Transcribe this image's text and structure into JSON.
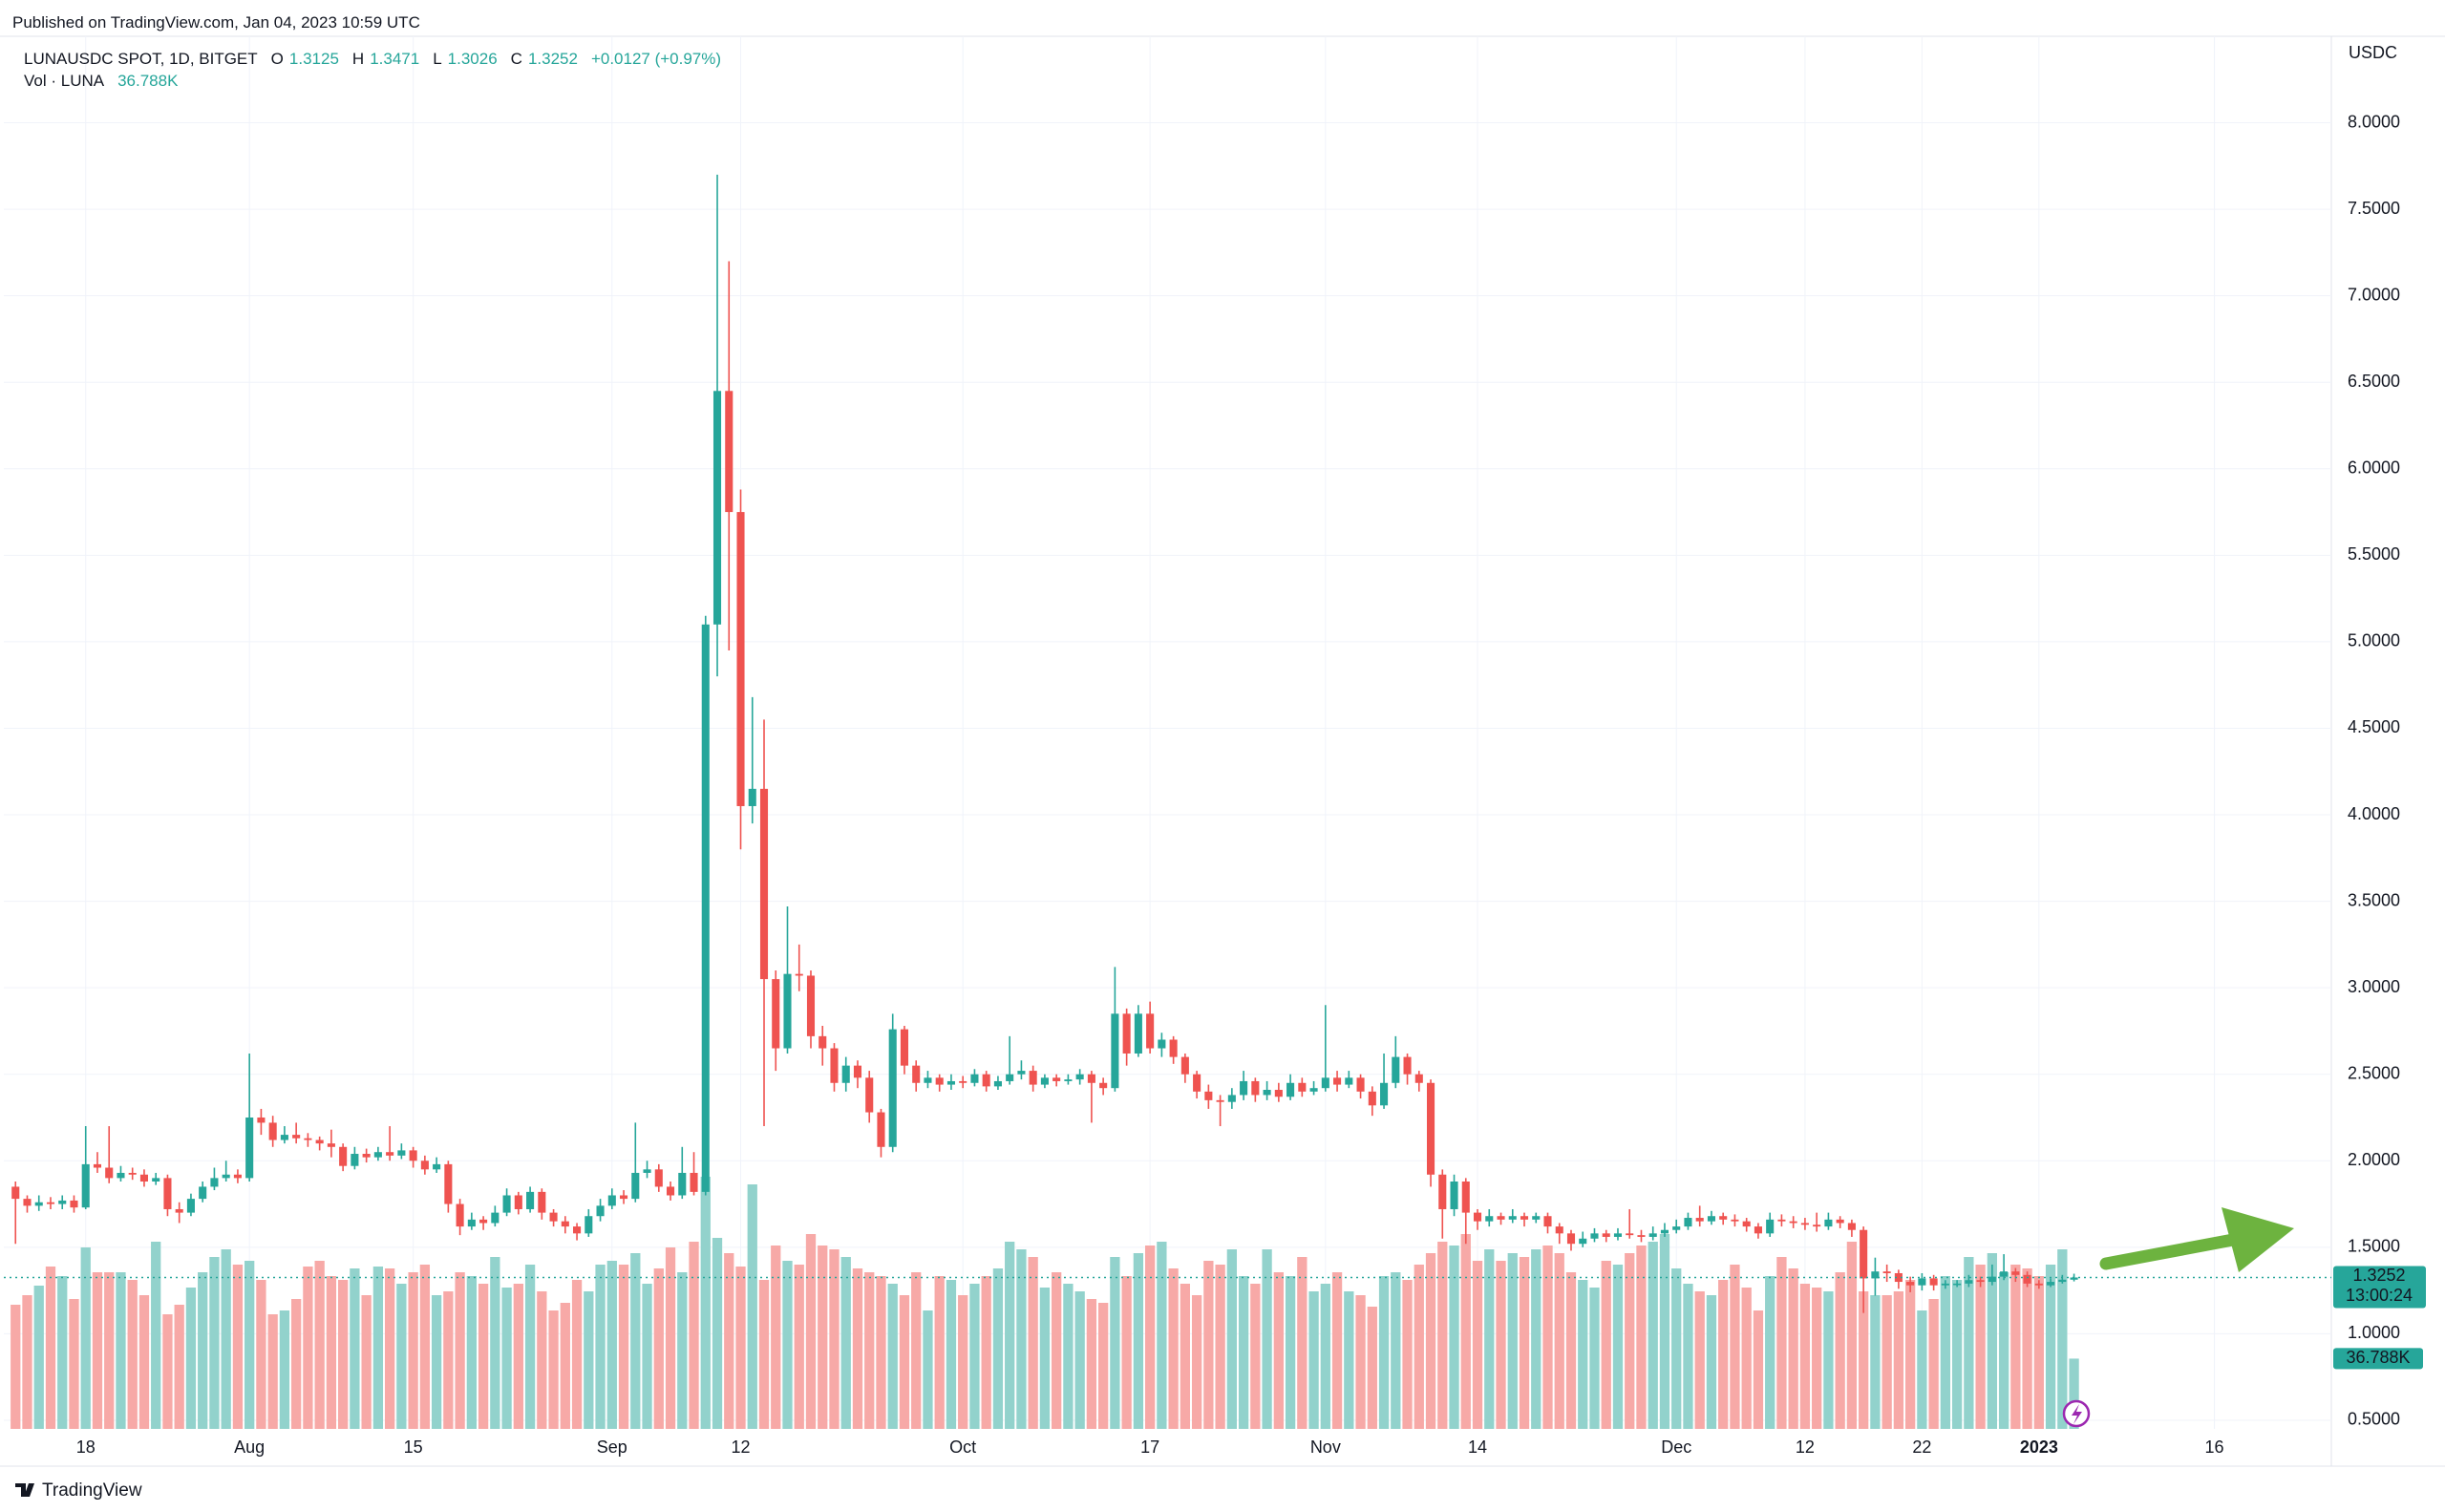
{
  "page": {
    "published": "Published on TradingView.com, Jan 04, 2023 10:59 UTC",
    "footer": "TradingView"
  },
  "chart_data": {
    "type": "candlestick",
    "symbol": "LUNAUSDC SPOT, 1D, BITGET",
    "o": "O",
    "h": "H",
    "l": "L",
    "c": "C",
    "change": "+0.0127 (+0.97%)",
    "vol_name": "Vol · LUNA",
    "vol_label": "36.788K",
    "currency": "USDC",
    "countdown": "13:00:24",
    "up_color": "#26a69a",
    "down_color": "#ef5350",
    "volume_up_color": "#92d2cc",
    "volume_down_color": "#f7a9a7",
    "grid": true,
    "xlim": [
      "2022-07-11",
      "2023-01-26"
    ],
    "xticks": [
      {
        "value": "2022-07-18",
        "label": "18"
      },
      {
        "value": "2022-08-01",
        "label": "Aug"
      },
      {
        "value": "2022-08-15",
        "label": "15"
      },
      {
        "value": "2022-09-01",
        "label": "Sep"
      },
      {
        "value": "2022-09-12",
        "label": "12"
      },
      {
        "value": "2022-10-01",
        "label": "Oct"
      },
      {
        "value": "2022-10-17",
        "label": "17"
      },
      {
        "value": "2022-11-01",
        "label": "Nov"
      },
      {
        "value": "2022-11-14",
        "label": "14"
      },
      {
        "value": "2022-12-01",
        "label": "Dec"
      },
      {
        "value": "2022-12-12",
        "label": "12"
      },
      {
        "value": "2022-12-22",
        "label": "22"
      },
      {
        "value": "2023-01-01",
        "label": "2023"
      },
      {
        "value": "2023-01-16",
        "label": "16"
      }
    ],
    "ylim": [
      0.45,
      8.5
    ],
    "yticks": [
      {
        "value": 0.5,
        "label": "0.5000"
      },
      {
        "value": 1.0,
        "label": "1.0000"
      },
      {
        "value": 1.5,
        "label": "1.5000"
      },
      {
        "value": 2.0,
        "label": "2.0000"
      },
      {
        "value": 2.5,
        "label": "2.5000"
      },
      {
        "value": 3.0,
        "label": "3.0000"
      },
      {
        "value": 3.5,
        "label": "3.5000"
      },
      {
        "value": 4.0,
        "label": "4.0000"
      },
      {
        "value": 4.5,
        "label": "4.5000"
      },
      {
        "value": 5.0,
        "label": "5.0000"
      },
      {
        "value": 5.5,
        "label": "5.5000"
      },
      {
        "value": 6.0,
        "label": "6.0000"
      },
      {
        "value": 6.5,
        "label": "6.5000"
      },
      {
        "value": 7.0,
        "label": "7.0000"
      },
      {
        "value": 7.5,
        "label": "7.5000"
      },
      {
        "value": 8.0,
        "label": "8.0000"
      }
    ],
    "x": [
      "2022-07-12",
      "2022-07-13",
      "2022-07-14",
      "2022-07-15",
      "2022-07-16",
      "2022-07-17",
      "2022-07-18",
      "2022-07-19",
      "2022-07-20",
      "2022-07-21",
      "2022-07-22",
      "2022-07-23",
      "2022-07-24",
      "2022-07-25",
      "2022-07-26",
      "2022-07-27",
      "2022-07-28",
      "2022-07-29",
      "2022-07-30",
      "2022-07-31",
      "2022-08-01",
      "2022-08-02",
      "2022-08-03",
      "2022-08-04",
      "2022-08-05",
      "2022-08-06",
      "2022-08-07",
      "2022-08-08",
      "2022-08-09",
      "2022-08-10",
      "2022-08-11",
      "2022-08-12",
      "2022-08-13",
      "2022-08-14",
      "2022-08-15",
      "2022-08-16",
      "2022-08-17",
      "2022-08-18",
      "2022-08-19",
      "2022-08-20",
      "2022-08-21",
      "2022-08-22",
      "2022-08-23",
      "2022-08-24",
      "2022-08-25",
      "2022-08-26",
      "2022-08-27",
      "2022-08-28",
      "2022-08-29",
      "2022-08-30",
      "2022-08-31",
      "2022-09-01",
      "2022-09-02",
      "2022-09-03",
      "2022-09-04",
      "2022-09-05",
      "2022-09-06",
      "2022-09-07",
      "2022-09-08",
      "2022-09-09",
      "2022-09-10",
      "2022-09-11",
      "2022-09-12",
      "2022-09-13",
      "2022-09-14",
      "2022-09-15",
      "2022-09-16",
      "2022-09-17",
      "2022-09-18",
      "2022-09-19",
      "2022-09-20",
      "2022-09-21",
      "2022-09-22",
      "2022-09-23",
      "2022-09-24",
      "2022-09-25",
      "2022-09-26",
      "2022-09-27",
      "2022-09-28",
      "2022-09-29",
      "2022-09-30",
      "2022-10-01",
      "2022-10-02",
      "2022-10-03",
      "2022-10-04",
      "2022-10-05",
      "2022-10-06",
      "2022-10-07",
      "2022-10-08",
      "2022-10-09",
      "2022-10-10",
      "2022-10-11",
      "2022-10-12",
      "2022-10-13",
      "2022-10-14",
      "2022-10-15",
      "2022-10-16",
      "2022-10-17",
      "2022-10-18",
      "2022-10-19",
      "2022-10-20",
      "2022-10-21",
      "2022-10-22",
      "2022-10-23",
      "2022-10-24",
      "2022-10-25",
      "2022-10-26",
      "2022-10-27",
      "2022-10-28",
      "2022-10-29",
      "2022-10-30",
      "2022-10-31",
      "2022-11-01",
      "2022-11-02",
      "2022-11-03",
      "2022-11-04",
      "2022-11-05",
      "2022-11-06",
      "2022-11-07",
      "2022-11-08",
      "2022-11-09",
      "2022-11-10",
      "2022-11-11",
      "2022-11-12",
      "2022-11-13",
      "2022-11-14",
      "2022-11-15",
      "2022-11-16",
      "2022-11-17",
      "2022-11-18",
      "2022-11-19",
      "2022-11-20",
      "2022-11-21",
      "2022-11-22",
      "2022-11-23",
      "2022-11-24",
      "2022-11-25",
      "2022-11-26",
      "2022-11-27",
      "2022-11-28",
      "2022-11-29",
      "2022-11-30",
      "2022-12-01",
      "2022-12-02",
      "2022-12-03",
      "2022-12-04",
      "2022-12-05",
      "2022-12-06",
      "2022-12-07",
      "2022-12-08",
      "2022-12-09",
      "2022-12-10",
      "2022-12-11",
      "2022-12-12",
      "2022-12-13",
      "2022-12-14",
      "2022-12-15",
      "2022-12-16",
      "2022-12-17",
      "2022-12-18",
      "2022-12-19",
      "2022-12-20",
      "2022-12-21",
      "2022-12-22",
      "2022-12-23",
      "2022-12-24",
      "2022-12-25",
      "2022-12-26",
      "2022-12-27",
      "2022-12-28",
      "2022-12-29",
      "2022-12-30",
      "2022-12-31",
      "2023-01-01",
      "2023-01-02",
      "2023-01-03",
      "2023-01-04"
    ],
    "open": [
      1.85,
      1.78,
      1.74,
      1.76,
      1.75,
      1.77,
      1.73,
      1.98,
      1.96,
      1.9,
      1.93,
      1.92,
      1.88,
      1.9,
      1.72,
      1.7,
      1.78,
      1.85,
      1.9,
      1.92,
      1.9,
      2.25,
      2.22,
      2.12,
      2.15,
      2.13,
      2.12,
      2.1,
      2.08,
      1.97,
      2.04,
      2.02,
      2.05,
      2.03,
      2.06,
      2.0,
      1.95,
      1.98,
      1.75,
      1.62,
      1.66,
      1.64,
      1.7,
      1.8,
      1.72,
      1.82,
      1.7,
      1.65,
      1.62,
      1.58,
      1.68,
      1.74,
      1.8,
      1.78,
      1.93,
      1.95,
      1.85,
      1.8,
      1.93,
      1.82,
      5.1,
      6.45,
      5.75,
      4.05,
      4.15,
      3.05,
      2.65,
      3.08,
      3.07,
      2.72,
      2.65,
      2.45,
      2.55,
      2.48,
      2.28,
      2.08,
      2.76,
      2.55,
      2.45,
      2.48,
      2.44,
      2.46,
      2.45,
      2.5,
      2.43,
      2.46,
      2.5,
      2.52,
      2.44,
      2.48,
      2.46,
      2.47,
      2.5,
      2.45,
      2.42,
      2.85,
      2.62,
      2.85,
      2.65,
      2.7,
      2.6,
      2.5,
      2.4,
      2.35,
      2.34,
      2.38,
      2.46,
      2.38,
      2.41,
      2.37,
      2.45,
      2.4,
      2.42,
      2.48,
      2.44,
      2.48,
      2.4,
      2.32,
      2.45,
      2.6,
      2.5,
      2.45,
      1.92,
      1.72,
      1.88,
      1.7,
      1.65,
      1.68,
      1.66,
      1.68,
      1.66,
      1.68,
      1.62,
      1.58,
      1.52,
      1.55,
      1.58,
      1.56,
      1.58,
      1.57,
      1.56,
      1.58,
      1.6,
      1.62,
      1.67,
      1.65,
      1.68,
      1.66,
      1.65,
      1.62,
      1.58,
      1.66,
      1.65,
      1.64,
      1.63,
      1.62,
      1.66,
      1.64,
      1.6,
      1.32,
      1.36,
      1.35,
      1.3,
      1.28,
      1.32,
      1.28,
      1.29,
      1.29,
      1.31,
      1.3,
      1.33,
      1.36,
      1.34,
      1.29,
      1.28,
      1.3,
      1.3125
    ],
    "high": [
      1.88,
      1.8,
      1.8,
      1.79,
      1.8,
      1.8,
      2.2,
      2.05,
      2.2,
      1.97,
      1.96,
      1.95,
      1.93,
      1.92,
      1.76,
      1.81,
      1.88,
      1.96,
      2.0,
      1.95,
      2.62,
      2.3,
      2.26,
      2.2,
      2.22,
      2.16,
      2.14,
      2.18,
      2.1,
      2.08,
      2.07,
      2.08,
      2.2,
      2.1,
      2.08,
      2.03,
      2.02,
      2.0,
      1.78,
      1.7,
      1.68,
      1.74,
      1.84,
      1.82,
      1.85,
      1.84,
      1.72,
      1.68,
      1.64,
      1.72,
      1.78,
      1.84,
      1.83,
      2.22,
      2.0,
      1.98,
      1.88,
      2.08,
      2.05,
      5.15,
      7.7,
      7.2,
      5.88,
      4.68,
      4.55,
      3.1,
      3.47,
      3.25,
      3.1,
      2.78,
      2.68,
      2.6,
      2.58,
      2.52,
      2.3,
      2.85,
      2.78,
      2.58,
      2.52,
      2.5,
      2.5,
      2.49,
      2.53,
      2.52,
      2.49,
      2.72,
      2.58,
      2.55,
      2.5,
      2.5,
      2.5,
      2.53,
      2.52,
      2.48,
      3.12,
      2.88,
      2.9,
      2.92,
      2.74,
      2.72,
      2.62,
      2.52,
      2.44,
      2.38,
      2.42,
      2.52,
      2.48,
      2.46,
      2.45,
      2.5,
      2.48,
      2.46,
      2.9,
      2.52,
      2.52,
      2.5,
      2.43,
      2.62,
      2.72,
      2.62,
      2.52,
      2.47,
      1.95,
      1.92,
      1.9,
      1.72,
      1.72,
      1.7,
      1.72,
      1.7,
      1.7,
      1.7,
      1.64,
      1.6,
      1.59,
      1.61,
      1.6,
      1.61,
      1.72,
      1.6,
      1.62,
      1.64,
      1.66,
      1.7,
      1.74,
      1.71,
      1.7,
      1.69,
      1.67,
      1.64,
      1.7,
      1.69,
      1.68,
      1.67,
      1.7,
      1.7,
      1.68,
      1.66,
      1.62,
      1.44,
      1.4,
      1.37,
      1.33,
      1.35,
      1.34,
      1.31,
      1.31,
      1.34,
      1.33,
      1.4,
      1.46,
      1.38,
      1.36,
      1.31,
      1.32,
      1.34,
      1.3471
    ],
    "low": [
      1.52,
      1.7,
      1.71,
      1.72,
      1.72,
      1.7,
      1.72,
      1.93,
      1.87,
      1.88,
      1.89,
      1.85,
      1.86,
      1.68,
      1.64,
      1.68,
      1.76,
      1.83,
      1.88,
      1.87,
      1.88,
      2.15,
      2.08,
      2.1,
      2.1,
      2.08,
      2.06,
      2.02,
      1.94,
      1.95,
      1.99,
      2.0,
      2.0,
      2.01,
      1.96,
      1.92,
      1.93,
      1.7,
      1.57,
      1.6,
      1.6,
      1.62,
      1.68,
      1.69,
      1.7,
      1.66,
      1.62,
      1.58,
      1.54,
      1.56,
      1.65,
      1.72,
      1.75,
      1.76,
      1.9,
      1.82,
      1.77,
      1.78,
      1.8,
      1.8,
      4.8,
      4.95,
      3.8,
      3.95,
      2.2,
      2.52,
      2.62,
      2.98,
      2.65,
      2.55,
      2.4,
      2.4,
      2.42,
      2.22,
      2.02,
      2.05,
      2.5,
      2.4,
      2.42,
      2.4,
      2.41,
      2.42,
      2.43,
      2.4,
      2.41,
      2.44,
      2.47,
      2.4,
      2.42,
      2.43,
      2.44,
      2.44,
      2.22,
      2.38,
      2.4,
      2.55,
      2.6,
      2.62,
      2.6,
      2.56,
      2.45,
      2.36,
      2.3,
      2.2,
      2.3,
      2.35,
      2.34,
      2.35,
      2.34,
      2.35,
      2.37,
      2.38,
      2.4,
      2.4,
      2.42,
      2.36,
      2.26,
      2.3,
      2.42,
      2.44,
      2.4,
      1.85,
      1.55,
      1.68,
      1.52,
      1.6,
      1.62,
      1.63,
      1.64,
      1.62,
      1.64,
      1.58,
      1.52,
      1.48,
      1.5,
      1.53,
      1.53,
      1.54,
      1.55,
      1.53,
      1.54,
      1.56,
      1.58,
      1.6,
      1.62,
      1.63,
      1.63,
      1.62,
      1.59,
      1.55,
      1.56,
      1.62,
      1.61,
      1.6,
      1.59,
      1.6,
      1.61,
      1.56,
      1.12,
      1.22,
      1.3,
      1.26,
      1.24,
      1.25,
      1.25,
      1.26,
      1.27,
      1.27,
      1.27,
      1.28,
      1.31,
      1.3,
      1.27,
      1.26,
      1.27,
      1.29,
      1.3026
    ],
    "close": [
      1.78,
      1.74,
      1.76,
      1.75,
      1.77,
      1.73,
      1.98,
      1.96,
      1.9,
      1.93,
      1.92,
      1.88,
      1.9,
      1.72,
      1.7,
      1.78,
      1.85,
      1.9,
      1.92,
      1.9,
      2.25,
      2.22,
      2.12,
      2.15,
      2.13,
      2.12,
      2.1,
      2.08,
      1.97,
      2.04,
      2.02,
      2.05,
      2.03,
      2.06,
      2.0,
      1.95,
      1.98,
      1.75,
      1.62,
      1.66,
      1.64,
      1.7,
      1.8,
      1.72,
      1.82,
      1.7,
      1.65,
      1.62,
      1.58,
      1.68,
      1.74,
      1.8,
      1.78,
      1.93,
      1.95,
      1.85,
      1.8,
      1.93,
      1.82,
      5.1,
      6.45,
      5.75,
      4.05,
      4.15,
      3.05,
      2.65,
      3.08,
      3.07,
      2.72,
      2.65,
      2.45,
      2.55,
      2.48,
      2.28,
      2.08,
      2.76,
      2.55,
      2.45,
      2.48,
      2.44,
      2.46,
      2.45,
      2.5,
      2.43,
      2.46,
      2.5,
      2.52,
      2.44,
      2.48,
      2.46,
      2.47,
      2.5,
      2.45,
      2.42,
      2.85,
      2.62,
      2.85,
      2.65,
      2.7,
      2.6,
      2.5,
      2.4,
      2.35,
      2.34,
      2.38,
      2.46,
      2.38,
      2.41,
      2.37,
      2.45,
      2.4,
      2.42,
      2.48,
      2.44,
      2.48,
      2.4,
      2.32,
      2.45,
      2.6,
      2.5,
      2.45,
      1.92,
      1.72,
      1.88,
      1.7,
      1.65,
      1.68,
      1.66,
      1.68,
      1.66,
      1.68,
      1.62,
      1.58,
      1.52,
      1.55,
      1.58,
      1.56,
      1.58,
      1.57,
      1.56,
      1.58,
      1.6,
      1.62,
      1.67,
      1.65,
      1.68,
      1.66,
      1.65,
      1.62,
      1.58,
      1.66,
      1.65,
      1.64,
      1.63,
      1.62,
      1.66,
      1.64,
      1.6,
      1.32,
      1.36,
      1.35,
      1.3,
      1.28,
      1.32,
      1.28,
      1.29,
      1.29,
      1.31,
      1.3,
      1.33,
      1.36,
      1.34,
      1.29,
      1.28,
      1.3,
      1.3125,
      1.3252
    ],
    "volume": [
      65000,
      70000,
      75000,
      85000,
      80000,
      68000,
      95000,
      82000,
      82000,
      82000,
      78000,
      70000,
      98000,
      60000,
      65000,
      74000,
      82000,
      90000,
      94000,
      86000,
      88000,
      78000,
      60000,
      62000,
      68000,
      85000,
      88000,
      80000,
      78000,
      84000,
      70000,
      85000,
      84000,
      76000,
      82000,
      86000,
      70000,
      72000,
      82000,
      80000,
      76000,
      90000,
      74000,
      76000,
      86000,
      72000,
      62000,
      66000,
      78000,
      72000,
      86000,
      88000,
      86000,
      92000,
      76000,
      84000,
      95000,
      82000,
      98000,
      132000,
      100000,
      92000,
      85000,
      128000,
      78000,
      96000,
      88000,
      86000,
      102000,
      96000,
      94000,
      90000,
      84000,
      82000,
      80000,
      76000,
      70000,
      82000,
      62000,
      80000,
      78000,
      70000,
      76000,
      80000,
      84000,
      98000,
      94000,
      90000,
      74000,
      82000,
      76000,
      72000,
      68000,
      66000,
      90000,
      80000,
      92000,
      96000,
      98000,
      84000,
      76000,
      70000,
      88000,
      86000,
      94000,
      80000,
      76000,
      94000,
      82000,
      80000,
      90000,
      72000,
      76000,
      82000,
      72000,
      70000,
      64000,
      80000,
      82000,
      78000,
      86000,
      92000,
      98000,
      96000,
      102000,
      88000,
      94000,
      88000,
      92000,
      90000,
      94000,
      96000,
      92000,
      82000,
      78000,
      74000,
      88000,
      86000,
      92000,
      96000,
      98000,
      102000,
      84000,
      76000,
      72000,
      70000,
      78000,
      86000,
      74000,
      62000,
      80000,
      90000,
      84000,
      76000,
      74000,
      72000,
      82000,
      98000,
      72000,
      70000,
      70000,
      72000,
      78000,
      62000,
      68000,
      80000,
      78000,
      90000,
      86000,
      92000,
      82000,
      86000,
      84000,
      80000,
      86000,
      94000,
      36788
    ]
  }
}
